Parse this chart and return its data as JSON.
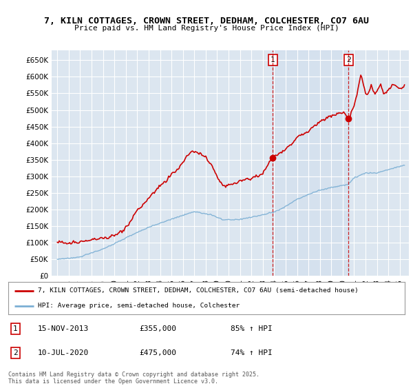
{
  "title1": "7, KILN COTTAGES, CROWN STREET, DEDHAM, COLCHESTER, CO7 6AU",
  "title2": "Price paid vs. HM Land Registry's House Price Index (HPI)",
  "background_color": "#ffffff",
  "plot_bg_color": "#dce6f0",
  "grid_color": "#ffffff",
  "red_color": "#cc0000",
  "blue_color": "#7bafd4",
  "vline_color": "#cc0000",
  "sale1_date": 2013.88,
  "sale1_price": 355000,
  "sale2_date": 2020.52,
  "sale2_price": 475000,
  "legend1": "7, KILN COTTAGES, CROWN STREET, DEDHAM, COLCHESTER, CO7 6AU (semi-detached house)",
  "legend2": "HPI: Average price, semi-detached house, Colchester",
  "annotation1": "15-NOV-2013",
  "annotation1_price": "£355,000",
  "annotation1_hpi": "85% ↑ HPI",
  "annotation2": "10-JUL-2020",
  "annotation2_price": "£475,000",
  "annotation2_hpi": "74% ↑ HPI",
  "footer": "Contains HM Land Registry data © Crown copyright and database right 2025.\nThis data is licensed under the Open Government Licence v3.0.",
  "ylim": [
    0,
    680000
  ],
  "xlim_start": 1994.5,
  "xlim_end": 2025.8
}
